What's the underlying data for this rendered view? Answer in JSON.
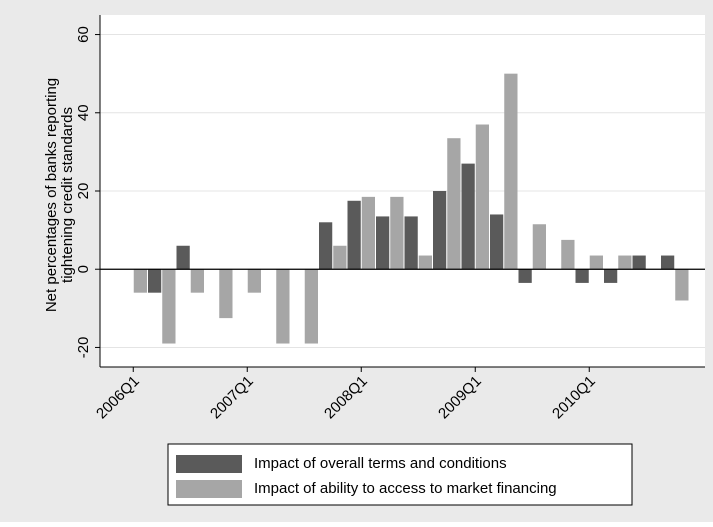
{
  "chart_data": {
    "type": "bar",
    "y_label": [
      "Net percentages of banks reporting",
      "tightening credit standards"
    ],
    "categories": [
      "2006Q1",
      null,
      null,
      null,
      "2007Q1",
      null,
      null,
      null,
      "2008Q1",
      null,
      null,
      null,
      "2009Q1",
      null,
      null,
      null,
      "2010Q1",
      null,
      null,
      null
    ],
    "series": [
      {
        "name": "Impact of overall terms and conditions",
        "color": "#5a5a5a",
        "values": [
          0,
          -6,
          6,
          0,
          0,
          0,
          0,
          12,
          17.5,
          13.5,
          13.5,
          20,
          27,
          14,
          -3.5,
          0,
          -3.5,
          -3.5,
          3.5,
          3.5
        ]
      },
      {
        "name": "Impact of ability to access to market financing",
        "color": "#a6a6a6",
        "values": [
          -6,
          -19,
          -6,
          -12.5,
          -6,
          -19,
          -19,
          6,
          18.5,
          18.5,
          3.5,
          33.5,
          37,
          50,
          11.5,
          7.5,
          3.5,
          3.5,
          0,
          -8
        ]
      }
    ],
    "ylim": [
      -25,
      65
    ],
    "yticks": [
      -20,
      0,
      20,
      40,
      60
    ],
    "grid": true
  }
}
